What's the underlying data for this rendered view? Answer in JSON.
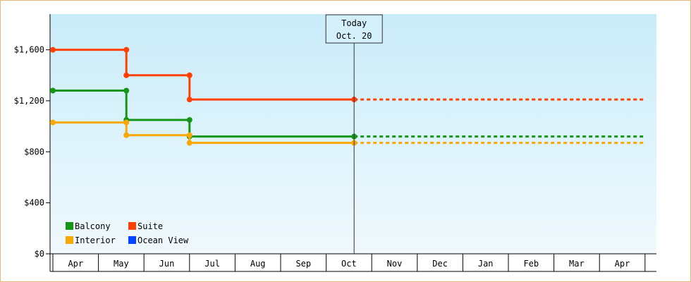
{
  "chart_data": {
    "type": "line",
    "subtype": "step",
    "y_tick_labels": [
      "$0",
      "$400",
      "$800",
      "$1,200",
      "$1,600"
    ],
    "y_ticks": [
      0,
      400,
      800,
      1200,
      1600
    ],
    "ylim": [
      0,
      1880
    ],
    "x_ticks": [
      "Apr",
      "May",
      "Jun",
      "Jul",
      "Aug",
      "Sep",
      "Oct",
      "Nov",
      "Dec",
      "Jan",
      "Feb",
      "Mar",
      "Apr"
    ],
    "today_marker": {
      "label_line1": "Today",
      "label_line2": "Oct. 20",
      "x_date": "Oct 20"
    },
    "series": [
      {
        "name": "Suite",
        "color": "#ff4000",
        "points": [
          [
            "Apr 1",
            1600
          ],
          [
            "May 20",
            1600
          ],
          [
            "May 20",
            1400
          ],
          [
            "Jul 1",
            1400
          ],
          [
            "Jul 1",
            1210
          ],
          [
            "Oct 20",
            1210
          ]
        ],
        "projection": [
          [
            "Oct 20",
            1210
          ],
          [
            "Apr 30 (next year)",
            1210
          ]
        ]
      },
      {
        "name": "Balcony",
        "color": "#169616",
        "points": [
          [
            "Apr 1",
            1280
          ],
          [
            "May 20",
            1280
          ],
          [
            "May 20",
            1050
          ],
          [
            "Jul 1",
            1050
          ],
          [
            "Jul 1",
            920
          ],
          [
            "Oct 20",
            920
          ]
        ],
        "projection": [
          [
            "Oct 20",
            920
          ],
          [
            "Apr 30 (next year)",
            920
          ]
        ]
      },
      {
        "name": "Interior",
        "color": "#f8a800",
        "points": [
          [
            "Apr 1",
            1030
          ],
          [
            "May 20",
            1030
          ],
          [
            "May 20",
            930
          ],
          [
            "Jul 1",
            930
          ],
          [
            "Jul 1",
            870
          ],
          [
            "Oct 20",
            870
          ]
        ],
        "projection": [
          [
            "Oct 20",
            870
          ],
          [
            "Apr 30 (next year)",
            870
          ]
        ]
      },
      {
        "name": "Ocean View",
        "color": "#0044ff",
        "points": [],
        "projection": []
      }
    ],
    "legend": [
      {
        "label": "Balcony",
        "color": "#169616"
      },
      {
        "label": "Suite",
        "color": "#ff4000"
      },
      {
        "label": "Interior",
        "color": "#f8a800"
      },
      {
        "label": "Ocean View",
        "color": "#0044ff"
      }
    ],
    "legend_position": "bottom-left"
  }
}
